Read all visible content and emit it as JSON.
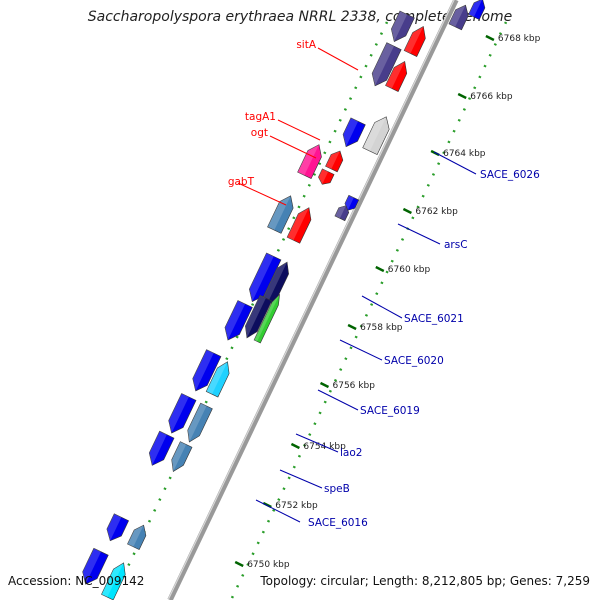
{
  "title": "Saccharopolyspora erythraea NRRL 2338, complete genome",
  "accession": "Accession: NC_009142",
  "topology": "Topology: circular; Length: 8,212,805 bp; Genes: 7,259",
  "colors": {
    "backbone": "#888888",
    "scale_dots": "#228b22",
    "label_red": "#dd0000",
    "label_blue": "#0000aa"
  },
  "ticks": [
    {
      "label": "6768 kbp"
    },
    {
      "label": "6766 kbp"
    },
    {
      "label": "6764 kbp"
    },
    {
      "label": "6762 kbp"
    },
    {
      "label": "6760 kbp"
    },
    {
      "label": "6758 kbp"
    },
    {
      "label": "6756 kbp"
    },
    {
      "label": "6754 kbp"
    },
    {
      "label": "6752 kbp"
    },
    {
      "label": "6750 kbp"
    }
  ],
  "genes": [
    {
      "name": "sitA",
      "color": "#ff0000"
    },
    {
      "name": "tagA1",
      "color": "#ff0000"
    },
    {
      "name": "ogt",
      "color": "#ff0000"
    },
    {
      "name": "gabT",
      "color": "#ff0000"
    },
    {
      "name": "SACE_6026",
      "color": "#0000aa"
    },
    {
      "name": "arsC",
      "color": "#0000aa"
    },
    {
      "name": "SACE_6021",
      "color": "#0000aa"
    },
    {
      "name": "SACE_6020",
      "color": "#0000aa"
    },
    {
      "name": "SACE_6019",
      "color": "#0000aa"
    },
    {
      "name": "lao2",
      "color": "#0000aa"
    },
    {
      "name": "speB",
      "color": "#0000aa"
    },
    {
      "name": "SACE_6016",
      "color": "#0000aa"
    }
  ]
}
